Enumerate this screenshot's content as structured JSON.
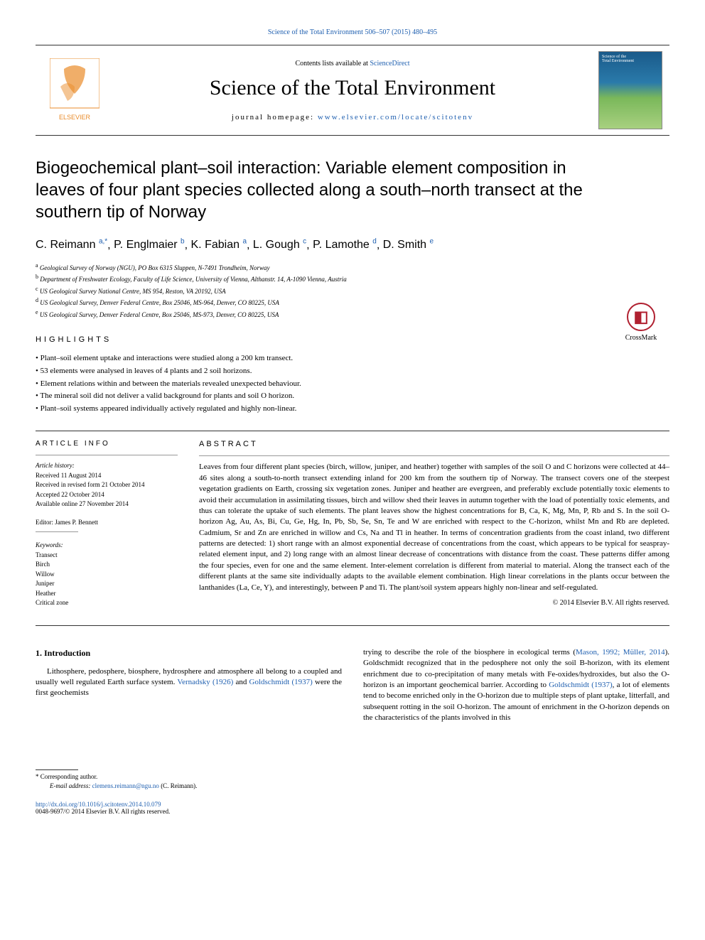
{
  "header": {
    "top_link": "Science of the Total Environment 506–507 (2015) 480–495",
    "contents_line_prefix": "Contents lists available at ",
    "contents_line_link": "ScienceDirect",
    "journal_name": "Science of the Total Environment",
    "homepage_prefix": "journal homepage: ",
    "homepage_link": "www.elsevier.com/locate/scitotenv",
    "publisher": "ELSEVIER",
    "cover_label_top": "Science of the",
    "cover_label_bottom": "Total Environment"
  },
  "crossmark": {
    "label": "CrossMark"
  },
  "title": "Biogeochemical plant–soil interaction: Variable element composition in leaves of four plant species collected along a south–north transect at the southern tip of Norway",
  "authors": [
    {
      "name": "C. Reimann",
      "aff": "a,",
      "marker": "*"
    },
    {
      "name": "P. Englmaier",
      "aff": "b"
    },
    {
      "name": "K. Fabian",
      "aff": "a"
    },
    {
      "name": "L. Gough",
      "aff": "c"
    },
    {
      "name": "P. Lamothe",
      "aff": "d"
    },
    {
      "name": "D. Smith",
      "aff": "e"
    }
  ],
  "affiliations": [
    {
      "sup": "a",
      "text": "Geological Survey of Norway (NGU), PO Box 6315 Sluppen, N-7491 Trondheim, Norway"
    },
    {
      "sup": "b",
      "text": "Department of Freshwater Ecology, Faculty of Life Science, University of Vienna, Althanstr. 14, A-1090 Vienna, Austria"
    },
    {
      "sup": "c",
      "text": "US Geological Survey National Centre, MS 954, Reston, VA 20192, USA"
    },
    {
      "sup": "d",
      "text": "US Geological Survey, Denver Federal Centre, Box 25046, MS-964, Denver, CO 80225, USA"
    },
    {
      "sup": "e",
      "text": "US Geological Survey, Denver Federal Centre, Box 25046, MS-973, Denver, CO 80225, USA"
    }
  ],
  "highlights": {
    "heading": "HIGHLIGHTS",
    "items": [
      "Plant–soil element uptake and interactions were studied along a 200 km transect.",
      "53 elements were analysed in leaves of 4 plants and 2 soil horizons.",
      "Element relations within and between the materials revealed unexpected behaviour.",
      "The mineral soil did not deliver a valid background for plants and soil O horizon.",
      "Plant–soil systems appeared individually actively regulated and highly non-linear."
    ]
  },
  "article_info": {
    "heading": "ARTICLE INFO",
    "history_label": "Article history:",
    "received": "Received 11 August 2014",
    "revised": "Received in revised form 21 October 2014",
    "accepted": "Accepted 22 October 2014",
    "online": "Available online 27 November 2014",
    "editor_label": "Editor: James P. Bennett",
    "keywords_label": "Keywords:",
    "keywords": [
      "Transect",
      "Birch",
      "Willow",
      "Juniper",
      "Heather",
      "Critical zone"
    ]
  },
  "abstract": {
    "heading": "ABSTRACT",
    "text": "Leaves from four different plant species (birch, willow, juniper, and heather) together with samples of the soil O and C horizons were collected at 44–46 sites along a south-to-north transect extending inland for 200 km from the southern tip of Norway. The transect covers one of the steepest vegetation gradients on Earth, crossing six vegetation zones. Juniper and heather are evergreen, and preferably exclude potentially toxic elements to avoid their accumulation in assimilating tissues, birch and willow shed their leaves in autumn together with the load of potentially toxic elements, and thus can tolerate the uptake of such elements. The plant leaves show the highest concentrations for B, Ca, K, Mg, Mn, P, Rb and S. In the soil O-horizon Ag, Au, As, Bi, Cu, Ge, Hg, In, Pb, Sb, Se, Sn, Te and W are enriched with respect to the C-horizon, whilst Mn and Rb are depleted. Cadmium, Sr and Zn are enriched in willow and Cs, Na and Tl in heather. In terms of concentration gradients from the coast inland, two different patterns are detected: 1) short range with an almost exponential decrease of concentrations from the coast, which appears to be typical for seaspray-related element input, and 2) long range with an almost linear decrease of concentrations with distance from the coast. These patterns differ among the four species, even for one and the same element. Inter-element correlation is different from material to material. Along the transect each of the different plants at the same site individually adapts to the available element combination. High linear correlations in the plants occur between the lanthanides (La, Ce, Y), and interestingly, between P and Ti. The plant/soil system appears highly non-linear and self-regulated.",
    "copyright": "© 2014 Elsevier B.V. All rights reserved."
  },
  "introduction": {
    "heading": "1. Introduction",
    "para1_a": "Lithosphere, pedosphere, biosphere, hydrosphere and atmosphere all belong to a coupled and usually well regulated Earth surface system. ",
    "ref1": "Vernadsky (1926)",
    "para1_b": " and ",
    "ref2": "Goldschmidt (1937)",
    "para1_c": " were the first geochemists",
    "para2_a": "trying to describe the role of the biosphere in ecological terms (",
    "ref3": "Mason, 1992; Müller, 2014",
    "para2_b": "). Goldschmidt recognized that in the pedosphere not only the soil B-horizon, with its element enrichment due to co-precipitation of many metals with Fe-oxides/hydroxides, but also the O-horizon is an important geochemical barrier. According to ",
    "ref4": "Goldschmidt (1937)",
    "para2_c": ", a lot of elements tend to become enriched only in the O-horizon due to multiple steps of plant uptake, litterfall, and subsequent rotting in the soil O-horizon. The amount of enrichment in the O-horizon depends on the characteristics of the plants involved in this"
  },
  "footer": {
    "corresponding_marker": "*",
    "corresponding_text": "Corresponding author.",
    "email_label": "E-mail address: ",
    "email": "clemens.reimann@ngu.no",
    "email_suffix": " (C. Reimann).",
    "doi": "http://dx.doi.org/10.1016/j.scitotenv.2014.10.079",
    "issn_copyright": "0048-9697/© 2014 Elsevier B.V. All rights reserved."
  },
  "colors": {
    "link": "#2060b0",
    "text": "#000000",
    "crossmark_red": "#b02030",
    "elsevier_orange": "#e98b2a"
  }
}
